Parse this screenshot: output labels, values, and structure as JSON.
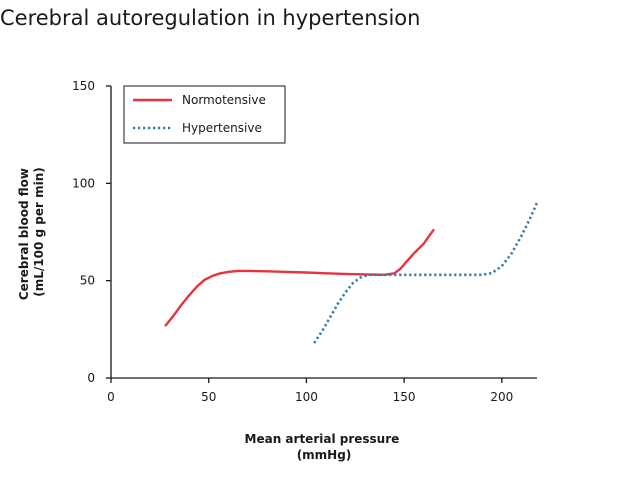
{
  "page": {
    "title": "Cerebral autoregulation in hypertension"
  },
  "colors": {
    "normotensive": "#e8323f",
    "hypertensive": "#2e7bb0",
    "axis": "#1a1a1a"
  },
  "chart_data": {
    "type": "line",
    "xlabel": [
      "Mean arterial pressure",
      "(mmHg)"
    ],
    "ylabel": [
      "Cerebral blood flow",
      "(mL/100 g per min)"
    ],
    "xlim": [
      0,
      218
    ],
    "ylim": [
      0,
      150
    ],
    "xticks": [
      0,
      50,
      100,
      150,
      200
    ],
    "yticks": [
      0,
      50,
      100,
      150
    ],
    "grid": false,
    "legend_position": "top-left",
    "series": [
      {
        "name": "Normotensive",
        "style": "solid",
        "x": [
          28,
          32,
          36,
          40,
          44,
          48,
          52,
          56,
          60,
          65,
          70,
          80,
          90,
          100,
          110,
          120,
          130,
          140,
          145,
          148,
          151,
          155,
          160,
          165
        ],
        "y": [
          27,
          32,
          37.5,
          42.5,
          47,
          50.5,
          52.5,
          53.8,
          54.5,
          55,
          55,
          54.8,
          54.5,
          54.2,
          53.8,
          53.5,
          53.2,
          53,
          53.8,
          56,
          59.5,
          64,
          69,
          76
        ]
      },
      {
        "name": "Hypertensive",
        "style": "dotted",
        "x": [
          104,
          108,
          112,
          116,
          120,
          124,
          128,
          132,
          140,
          150,
          160,
          170,
          180,
          190,
          195,
          200,
          205,
          210,
          214,
          218
        ],
        "y": [
          18,
          24,
          31,
          38,
          44,
          49,
          51.8,
          53,
          53,
          53,
          53,
          53,
          53,
          53,
          54,
          57.5,
          64,
          73,
          81,
          90
        ]
      }
    ]
  }
}
